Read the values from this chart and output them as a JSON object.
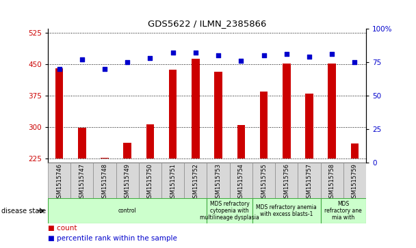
{
  "title": "GDS5622 / ILMN_2385866",
  "samples": [
    "GSM1515746",
    "GSM1515747",
    "GSM1515748",
    "GSM1515749",
    "GSM1515750",
    "GSM1515751",
    "GSM1515752",
    "GSM1515753",
    "GSM1515754",
    "GSM1515755",
    "GSM1515756",
    "GSM1515757",
    "GSM1515758",
    "GSM1515759"
  ],
  "counts": [
    440,
    298,
    226,
    262,
    306,
    437,
    462,
    432,
    305,
    384,
    451,
    380,
    451,
    260
  ],
  "percentile_ranks": [
    70,
    77,
    70,
    75,
    78,
    82,
    82,
    80,
    76,
    80,
    81,
    79,
    81,
    75
  ],
  "ylim_left": [
    215,
    535
  ],
  "ylim_right": [
    0,
    100
  ],
  "yticks_left": [
    225,
    300,
    375,
    450,
    525
  ],
  "yticks_right": [
    0,
    25,
    50,
    75,
    100
  ],
  "bar_color": "#cc0000",
  "dot_color": "#0000cc",
  "disease_groups": [
    {
      "label": "control",
      "start": 0,
      "end": 7
    },
    {
      "label": "MDS refractory\ncytopenia with\nmultilineage dysplasia",
      "start": 7,
      "end": 9
    },
    {
      "label": "MDS refractory anemia\nwith excess blasts-1",
      "start": 9,
      "end": 12
    },
    {
      "label": "MDS\nrefractory ane\nmia with",
      "start": 12,
      "end": 14
    }
  ],
  "disease_state_label": "disease state",
  "bar_width": 0.35,
  "ybase": 225
}
